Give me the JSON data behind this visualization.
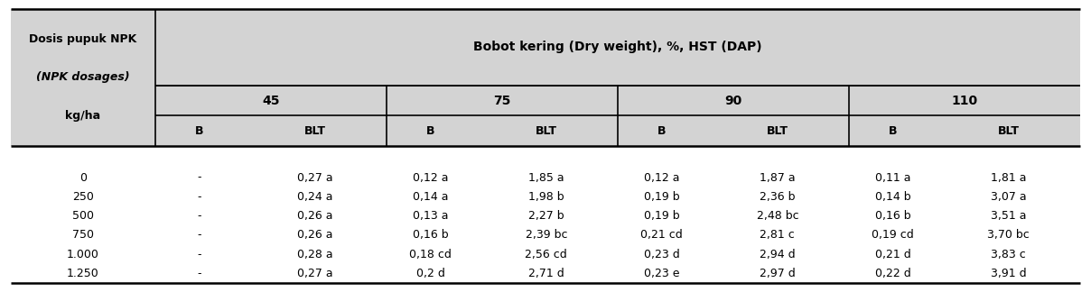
{
  "title_col": "Dosis pupuk NPK\n(NPK dosages)\nkg/ha",
  "main_header": "Bobot kering (Dry weight), %, HST (DAP)",
  "sub_headers": [
    "45",
    "75",
    "90",
    "110"
  ],
  "col_headers": [
    "B",
    "BLT",
    "B",
    "BLT",
    "B",
    "BLT",
    "B",
    "BLT"
  ],
  "row_labels": [
    "0",
    "250",
    "500",
    "750",
    "1.000",
    "1.250"
  ],
  "data": [
    [
      "-",
      "0,27 a",
      "0,12 a",
      "1,85 a",
      "0,12 a",
      "1,87 a",
      "0,11 a",
      "1,81 a"
    ],
    [
      "-",
      "0,24 a",
      "0,14 a",
      "1,98 b",
      "0,19 b",
      "2,36 b",
      "0,14 b",
      "3,07 a"
    ],
    [
      "-",
      "0,26 a",
      "0,13 a",
      "2,27 b",
      "0,19 b",
      "2,48 bc",
      "0,16 b",
      "3,51 a"
    ],
    [
      "-",
      "0,26 a",
      "0,16 b",
      "2,39 bc",
      "0,21 cd",
      "2,81 c",
      "0,19 cd",
      "3,70 bc"
    ],
    [
      "-",
      "0,28 a",
      "0,18 cd",
      "2,56 cd",
      "0,23 d",
      "2,94 d",
      "0,21 d",
      "3,83 c"
    ],
    [
      "-",
      "0,27 a",
      "0,2 d",
      "2,71 d",
      "0,23 e",
      "2,97 d",
      "0,22 d",
      "3,91 d"
    ]
  ],
  "bg_header": "#d3d3d3",
  "bg_body": "#ffffff",
  "text_color": "#000000",
  "font_size": 9,
  "header_font_size": 9
}
